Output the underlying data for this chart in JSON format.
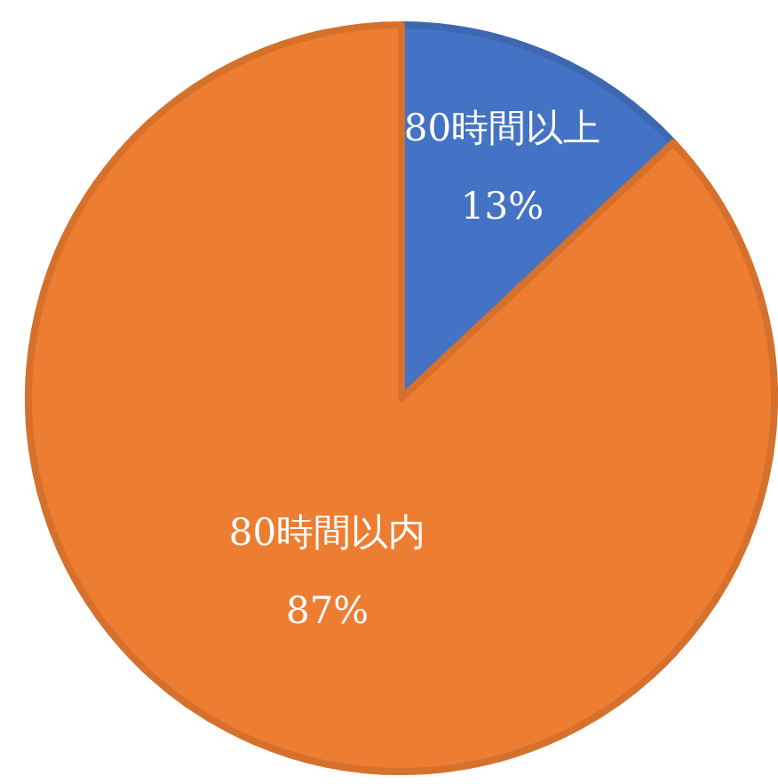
{
  "chart_data": {
    "type": "pie",
    "categories": [
      "80時間以上",
      "80時間以内"
    ],
    "values": [
      13,
      87
    ],
    "value_labels": [
      "13%",
      "87%"
    ],
    "colors": [
      "#4472c4",
      "#ed7d31"
    ]
  }
}
